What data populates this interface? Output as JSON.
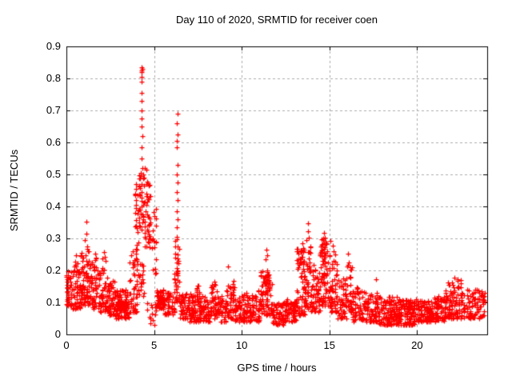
{
  "chart_data": {
    "type": "scatter",
    "title": "Day 110 of 2020, SRMTID for receiver coen",
    "xlabel": "GPS time / hours",
    "ylabel": "SRMTID / TECUs",
    "xlim": [
      0,
      24
    ],
    "ylim": [
      0,
      0.9
    ],
    "grid": true,
    "legend": false,
    "x_ticks": {
      "values": [
        0,
        5,
        10,
        15,
        20
      ],
      "labels": [
        "0",
        "5",
        "10",
        "15",
        "20"
      ]
    },
    "y_ticks": {
      "values": [
        0,
        0.1,
        0.2,
        0.3,
        0.4,
        0.5,
        0.6,
        0.7,
        0.8,
        0.9
      ],
      "labels": [
        "0",
        "0.1",
        "0.2",
        "0.3",
        "0.4",
        "0.5",
        "0.6",
        "0.7",
        "0.8",
        "0.9"
      ]
    },
    "marker": {
      "shape": "plus",
      "color": "#ff0000",
      "size": 7
    },
    "grid_color": "#ababab",
    "border_color": "#000000",
    "background_color": "#ffffff",
    "peak_points": [
      [
        4.3,
        0.835
      ],
      [
        4.32,
        0.83
      ],
      [
        4.29,
        0.825
      ],
      [
        4.31,
        0.82
      ],
      [
        4.3,
        0.805
      ],
      [
        4.31,
        0.79
      ],
      [
        4.3,
        0.755
      ],
      [
        4.31,
        0.73
      ],
      [
        4.29,
        0.7
      ],
      [
        4.28,
        0.675
      ],
      [
        4.3,
        0.65
      ],
      [
        4.32,
        0.62
      ],
      [
        4.29,
        0.585
      ],
      [
        4.3,
        0.55
      ],
      [
        4.33,
        0.52
      ],
      [
        4.26,
        0.505
      ],
      [
        4.36,
        0.5
      ],
      [
        4.45,
        0.52
      ],
      [
        4.55,
        0.515
      ],
      [
        4.42,
        0.49
      ],
      [
        3.95,
        0.47
      ],
      [
        3.97,
        0.455
      ],
      [
        3.94,
        0.44
      ],
      [
        3.96,
        0.42
      ],
      [
        3.98,
        0.405
      ],
      [
        6.32,
        0.69
      ],
      [
        6.3,
        0.66
      ],
      [
        6.33,
        0.625
      ],
      [
        6.31,
        0.605
      ],
      [
        6.3,
        0.585
      ],
      [
        6.32,
        0.53
      ],
      [
        6.31,
        0.5
      ],
      [
        6.33,
        0.475
      ],
      [
        6.3,
        0.445
      ],
      [
        6.32,
        0.42
      ],
      [
        6.31,
        0.385
      ],
      [
        6.34,
        0.36
      ],
      [
        6.3,
        0.335
      ],
      [
        6.29,
        0.305
      ],
      [
        6.33,
        0.275
      ],
      [
        6.35,
        0.25
      ],
      [
        6.28,
        0.225
      ],
      [
        6.36,
        0.2
      ],
      [
        1.12,
        0.352
      ],
      [
        1.15,
        0.315
      ],
      [
        1.03,
        0.295
      ],
      [
        1.2,
        0.275
      ],
      [
        1.65,
        0.252
      ],
      [
        2.15,
        0.258
      ],
      [
        2.2,
        0.242
      ],
      [
        0.55,
        0.248
      ],
      [
        9.22,
        0.212
      ],
      [
        8.45,
        0.165
      ],
      [
        11.42,
        0.265
      ],
      [
        11.46,
        0.248
      ],
      [
        11.38,
        0.235
      ],
      [
        13.48,
        0.285
      ],
      [
        13.52,
        0.27
      ],
      [
        13.8,
        0.348
      ],
      [
        13.77,
        0.322
      ],
      [
        13.83,
        0.303
      ],
      [
        13.7,
        0.295
      ],
      [
        14.68,
        0.318
      ],
      [
        14.73,
        0.302
      ],
      [
        14.78,
        0.29
      ],
      [
        15.18,
        0.278
      ],
      [
        15.25,
        0.26
      ],
      [
        16.05,
        0.252
      ],
      [
        16.1,
        0.225
      ],
      [
        17.68,
        0.172
      ],
      [
        22.15,
        0.178
      ],
      [
        22.3,
        0.172
      ]
    ],
    "clusters": [
      [
        0.0,
        0.3,
        0.09,
        0.2,
        38,
        1.6
      ],
      [
        0.0,
        0.15,
        0.1,
        0.16,
        12,
        1.0
      ],
      [
        0.3,
        0.8,
        0.08,
        0.23,
        62,
        1.5
      ],
      [
        0.8,
        1.3,
        0.09,
        0.27,
        72,
        1.5
      ],
      [
        1.3,
        1.9,
        0.08,
        0.24,
        68,
        1.5
      ],
      [
        1.9,
        2.4,
        0.07,
        0.24,
        58,
        1.6
      ],
      [
        2.4,
        2.8,
        0.06,
        0.17,
        46,
        1.4
      ],
      [
        2.8,
        3.6,
        0.05,
        0.14,
        70,
        1.2
      ],
      [
        2.9,
        3.45,
        0.075,
        0.105,
        110,
        1.0
      ],
      [
        3.6,
        4.05,
        0.07,
        0.28,
        46,
        1.8
      ],
      [
        3.9,
        4.05,
        0.15,
        0.45,
        18,
        1.3
      ],
      [
        4.05,
        4.45,
        0.12,
        0.35,
        30,
        1.2
      ],
      [
        4.1,
        4.45,
        0.36,
        0.5,
        28,
        1.0
      ],
      [
        4.45,
        4.85,
        0.27,
        0.48,
        40,
        1.1
      ],
      [
        4.5,
        5.1,
        0.03,
        0.1,
        14,
        1.2
      ],
      [
        4.85,
        5.15,
        0.18,
        0.4,
        18,
        1.4
      ],
      [
        5.15,
        5.55,
        0.08,
        0.14,
        60,
        1.1
      ],
      [
        5.55,
        6.15,
        0.06,
        0.13,
        48,
        1.3
      ],
      [
        6.15,
        6.45,
        0.1,
        0.3,
        40,
        1.7
      ],
      [
        6.45,
        7.0,
        0.05,
        0.13,
        52,
        1.2
      ],
      [
        7.0,
        7.6,
        0.04,
        0.13,
        56,
        1.3
      ],
      [
        7.4,
        7.6,
        0.1,
        0.16,
        12,
        1.0
      ],
      [
        7.6,
        8.2,
        0.04,
        0.12,
        56,
        1.3
      ],
      [
        8.2,
        8.6,
        0.05,
        0.16,
        40,
        1.5
      ],
      [
        8.6,
        9.1,
        0.04,
        0.12,
        46,
        1.3
      ],
      [
        9.1,
        9.6,
        0.05,
        0.17,
        46,
        1.6
      ],
      [
        9.6,
        10.4,
        0.04,
        0.13,
        70,
        1.4
      ],
      [
        10.4,
        11.0,
        0.04,
        0.14,
        56,
        1.4
      ],
      [
        11.0,
        11.75,
        0.06,
        0.2,
        78,
        1.6
      ],
      [
        11.3,
        11.6,
        0.12,
        0.19,
        20,
        1.0
      ],
      [
        11.75,
        12.5,
        0.03,
        0.1,
        72,
        1.2
      ],
      [
        12.5,
        13.1,
        0.04,
        0.11,
        56,
        1.2
      ],
      [
        13.1,
        13.6,
        0.06,
        0.27,
        62,
        1.7
      ],
      [
        13.35,
        13.6,
        0.2,
        0.28,
        14,
        1.0
      ],
      [
        13.6,
        13.95,
        0.08,
        0.3,
        40,
        1.5
      ],
      [
        13.95,
        14.45,
        0.07,
        0.22,
        52,
        1.5
      ],
      [
        14.45,
        15.05,
        0.09,
        0.3,
        72,
        1.6
      ],
      [
        14.55,
        14.85,
        0.18,
        0.3,
        20,
        1.0
      ],
      [
        15.05,
        15.45,
        0.07,
        0.26,
        46,
        1.7
      ],
      [
        15.45,
        16.0,
        0.05,
        0.18,
        52,
        1.5
      ],
      [
        16.0,
        16.3,
        0.07,
        0.22,
        30,
        1.5
      ],
      [
        16.3,
        17.0,
        0.04,
        0.15,
        66,
        1.4
      ],
      [
        17.0,
        17.8,
        0.04,
        0.13,
        72,
        1.4
      ],
      [
        17.8,
        19.0,
        0.03,
        0.12,
        140,
        1.4
      ],
      [
        19.0,
        20.0,
        0.03,
        0.11,
        120,
        1.3
      ],
      [
        20.0,
        20.8,
        0.04,
        0.11,
        88,
        1.3
      ],
      [
        20.8,
        21.6,
        0.04,
        0.12,
        88,
        1.3
      ],
      [
        21.6,
        22.6,
        0.05,
        0.17,
        98,
        1.5
      ],
      [
        22.6,
        23.9,
        0.05,
        0.14,
        96,
        1.3
      ]
    ]
  }
}
